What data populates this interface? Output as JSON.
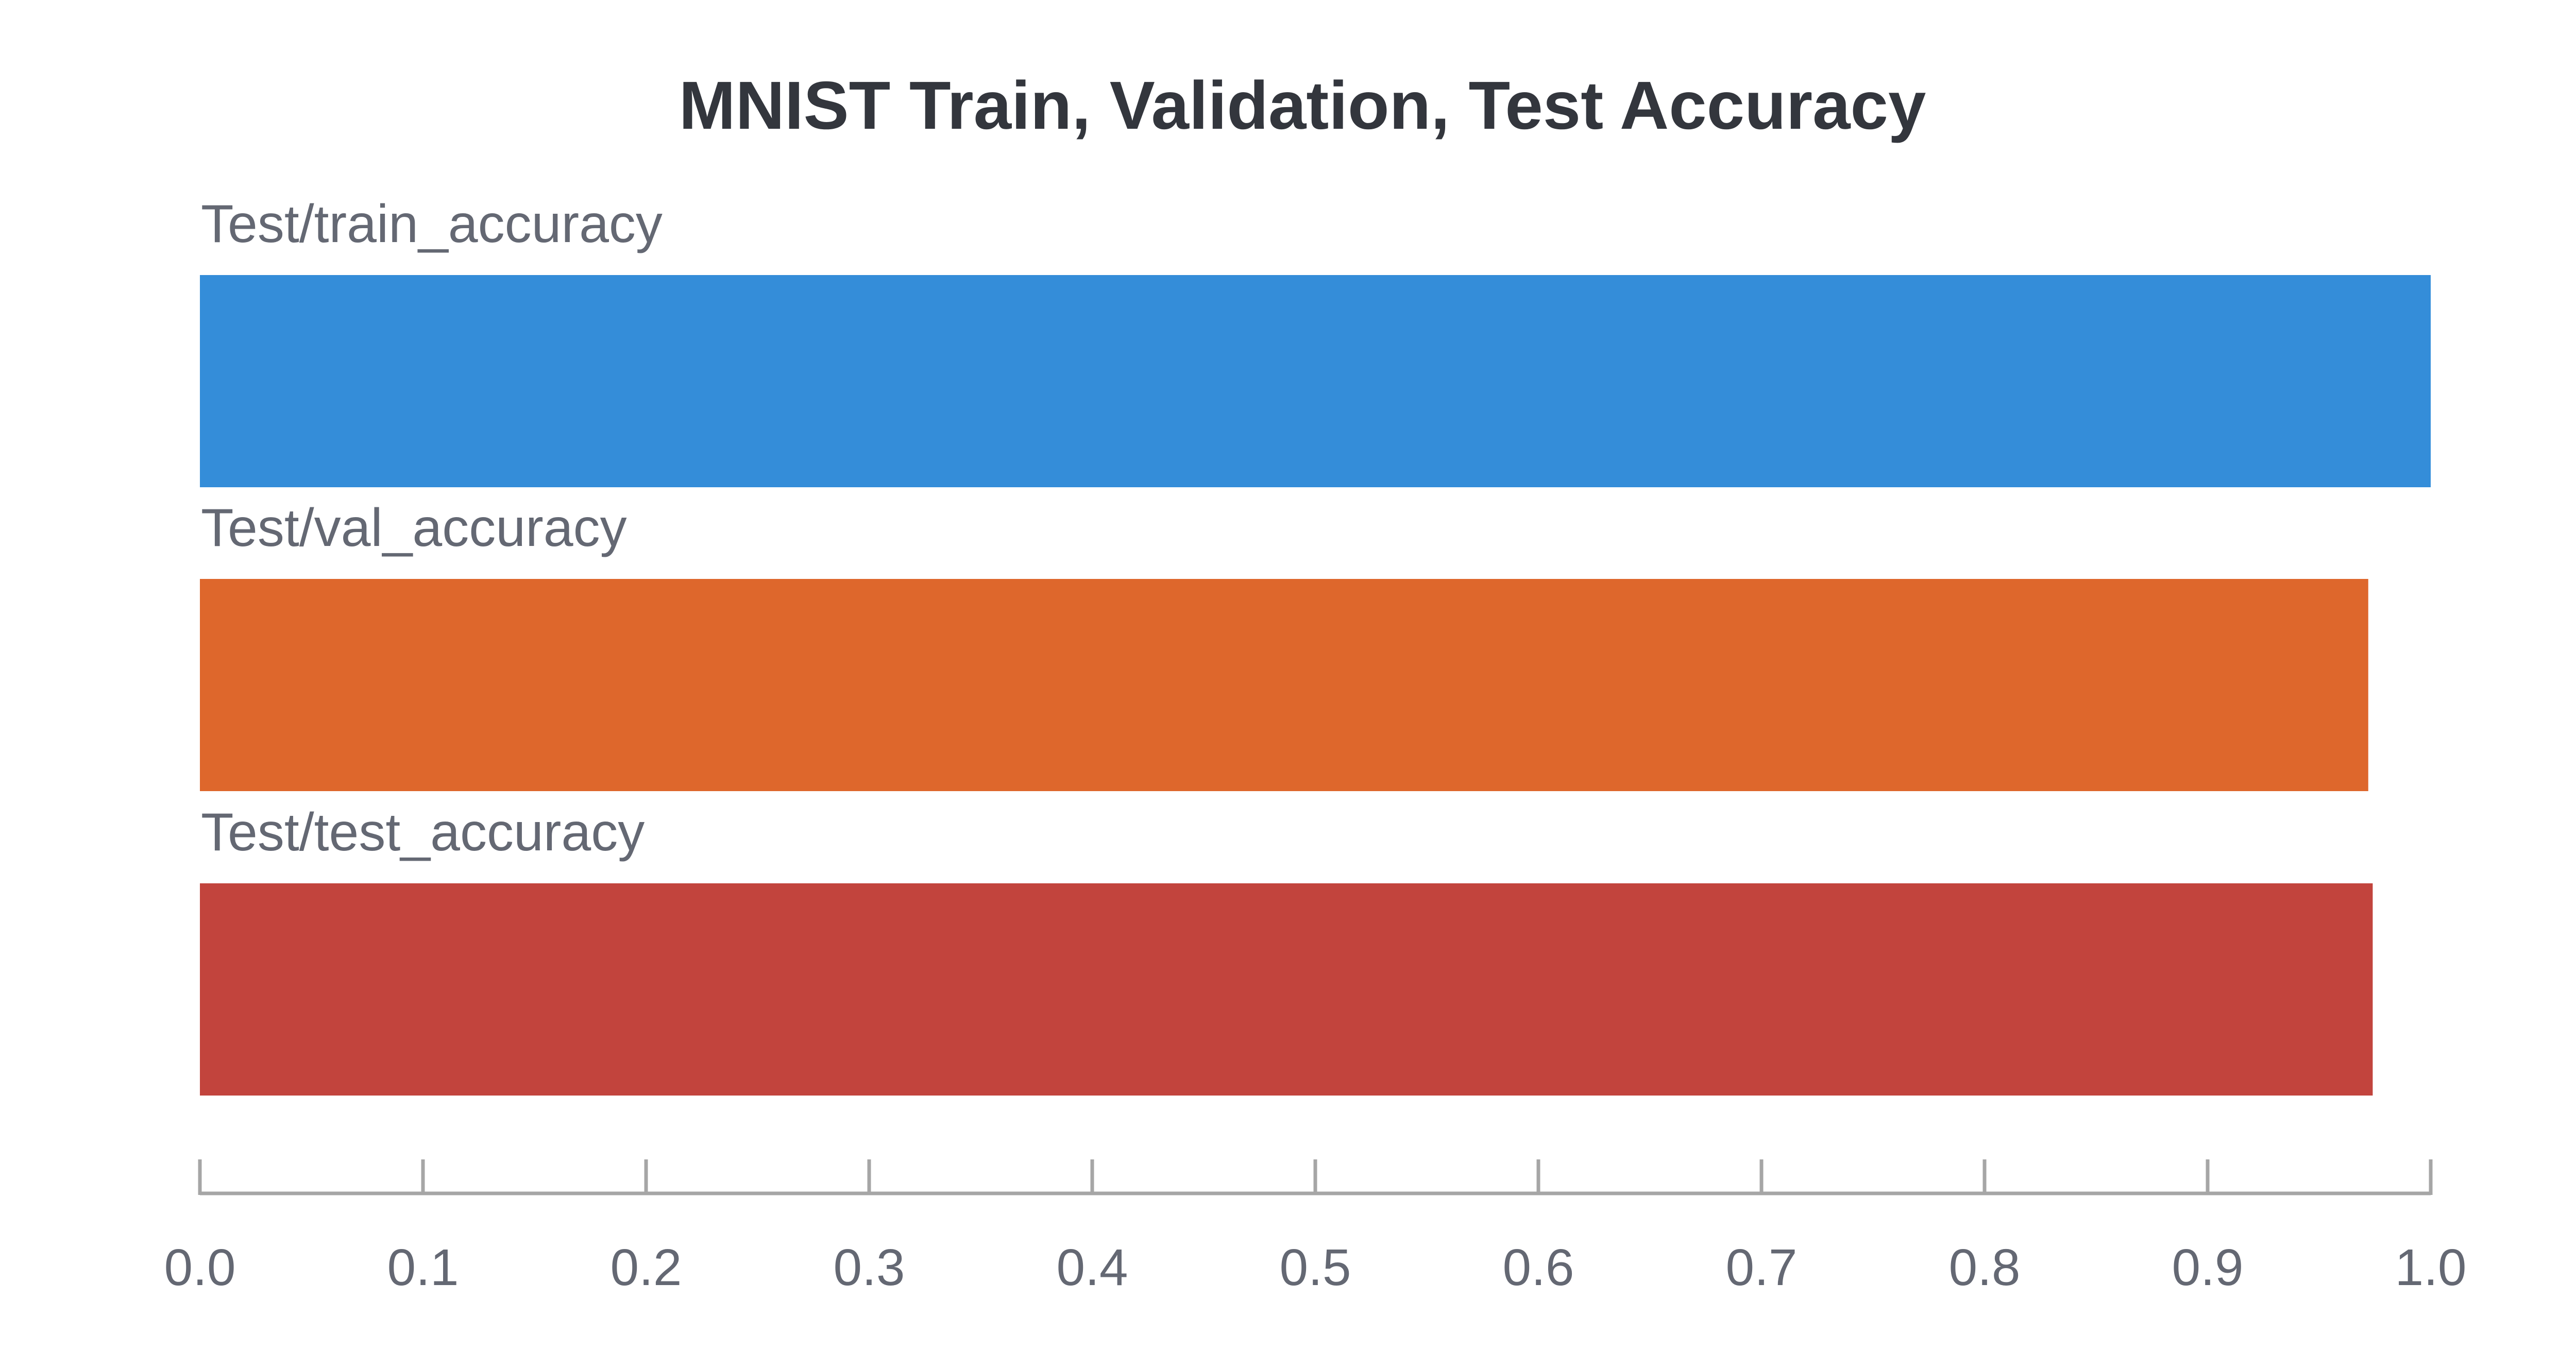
{
  "chart_data": {
    "type": "bar",
    "orientation": "horizontal",
    "title": "MNIST Train, Validation, Test Accuracy",
    "xlabel": "",
    "ylabel": "",
    "xlim": [
      0,
      1.0
    ],
    "x_ticks": [
      "0.0",
      "0.1",
      "0.2",
      "0.3",
      "0.4",
      "0.5",
      "0.6",
      "0.7",
      "0.8",
      "0.9",
      "1.0"
    ],
    "grid": false,
    "legend": "none",
    "categories": [
      "Test/train_accuracy",
      "Test/val_accuracy",
      "Test/test_accuracy"
    ],
    "values": [
      1.0,
      0.972,
      0.974
    ],
    "colors": [
      "#348dd9",
      "#de672c",
      "#c2443d"
    ],
    "axis_color": "#a6a6a6",
    "label_color": "#646873",
    "title_color": "#33363d"
  }
}
